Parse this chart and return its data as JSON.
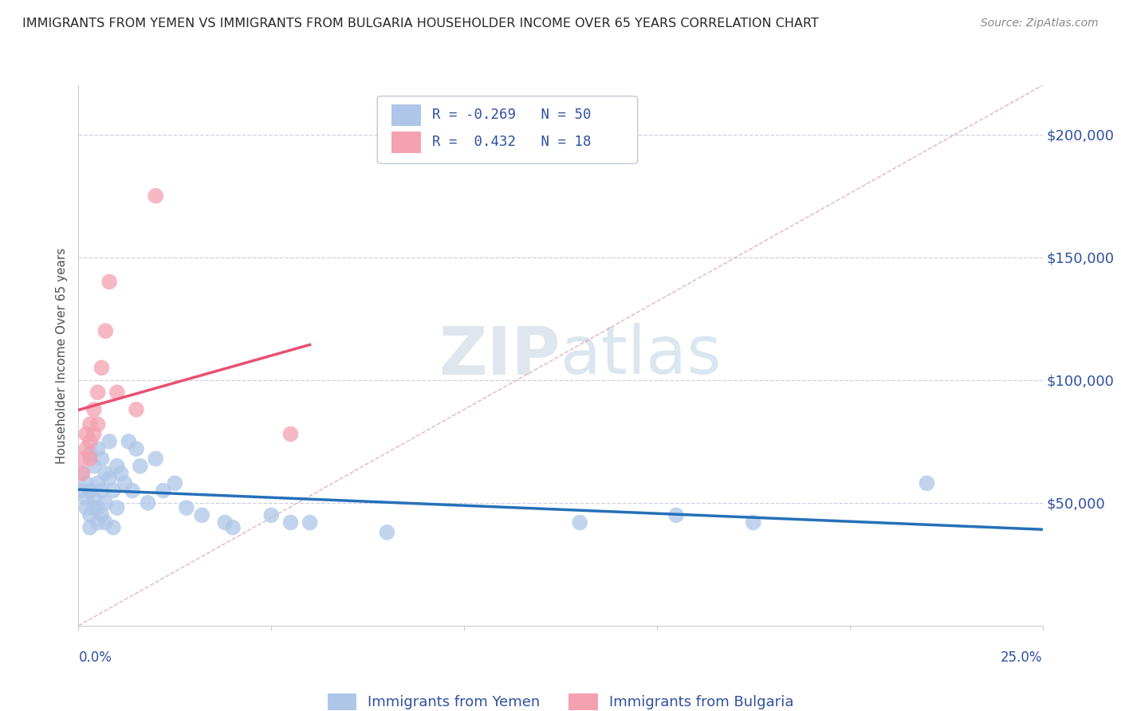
{
  "title": "IMMIGRANTS FROM YEMEN VS IMMIGRANTS FROM BULGARIA HOUSEHOLDER INCOME OVER 65 YEARS CORRELATION CHART",
  "source": "Source: ZipAtlas.com",
  "ylabel": "Householder Income Over 65 years",
  "xlim": [
    0.0,
    0.25
  ],
  "ylim": [
    -5000,
    220000
  ],
  "plot_ylim": [
    0,
    220000
  ],
  "color_yemen": "#aec6e8",
  "color_bulgaria": "#f4a0b0",
  "color_line_yemen": "#2470b8",
  "color_line_bulgaria": "#e85070",
  "color_diagonal": "#e0a0b0",
  "watermark_zip": "ZIP",
  "watermark_atlas": "atlas",
  "background_color": "#ffffff",
  "grid_color": "#d0d0e0",
  "title_color": "#282828",
  "axis_label_color": "#3050a0",
  "legend_color": "#3050a0",
  "ytick_vals": [
    50000,
    100000,
    150000,
    200000
  ],
  "ytick_labels": [
    "$50,000",
    "$100,000",
    "$150,000",
    "$200,000"
  ],
  "xtick_vals": [
    0.0,
    0.05,
    0.1,
    0.15,
    0.2,
    0.25
  ],
  "yemen_x": [
    0.001,
    0.001,
    0.002,
    0.002,
    0.002,
    0.003,
    0.003,
    0.003,
    0.003,
    0.004,
    0.004,
    0.004,
    0.005,
    0.005,
    0.005,
    0.005,
    0.006,
    0.006,
    0.006,
    0.007,
    0.007,
    0.007,
    0.008,
    0.008,
    0.009,
    0.009,
    0.01,
    0.01,
    0.011,
    0.012,
    0.013,
    0.014,
    0.015,
    0.016,
    0.018,
    0.02,
    0.022,
    0.025,
    0.028,
    0.032,
    0.038,
    0.04,
    0.05,
    0.055,
    0.06,
    0.08,
    0.13,
    0.155,
    0.175,
    0.22
  ],
  "yemen_y": [
    62000,
    55000,
    58000,
    48000,
    52000,
    70000,
    55000,
    45000,
    40000,
    65000,
    52000,
    48000,
    72000,
    58000,
    48000,
    42000,
    68000,
    55000,
    45000,
    62000,
    50000,
    42000,
    75000,
    60000,
    55000,
    40000,
    65000,
    48000,
    62000,
    58000,
    75000,
    55000,
    72000,
    65000,
    50000,
    68000,
    55000,
    58000,
    48000,
    45000,
    42000,
    40000,
    45000,
    42000,
    42000,
    38000,
    42000,
    45000,
    42000,
    58000
  ],
  "bulgaria_x": [
    0.001,
    0.001,
    0.002,
    0.002,
    0.003,
    0.003,
    0.003,
    0.004,
    0.004,
    0.005,
    0.005,
    0.006,
    0.007,
    0.008,
    0.01,
    0.015,
    0.02,
    0.055
  ],
  "bulgaria_y": [
    68000,
    62000,
    78000,
    72000,
    82000,
    75000,
    68000,
    88000,
    78000,
    95000,
    82000,
    105000,
    120000,
    140000,
    95000,
    88000,
    175000,
    78000
  ],
  "legend_r1": "R = -0.269",
  "legend_n1": "N = 50",
  "legend_r2": "R =  0.432",
  "legend_n2": "N = 18"
}
